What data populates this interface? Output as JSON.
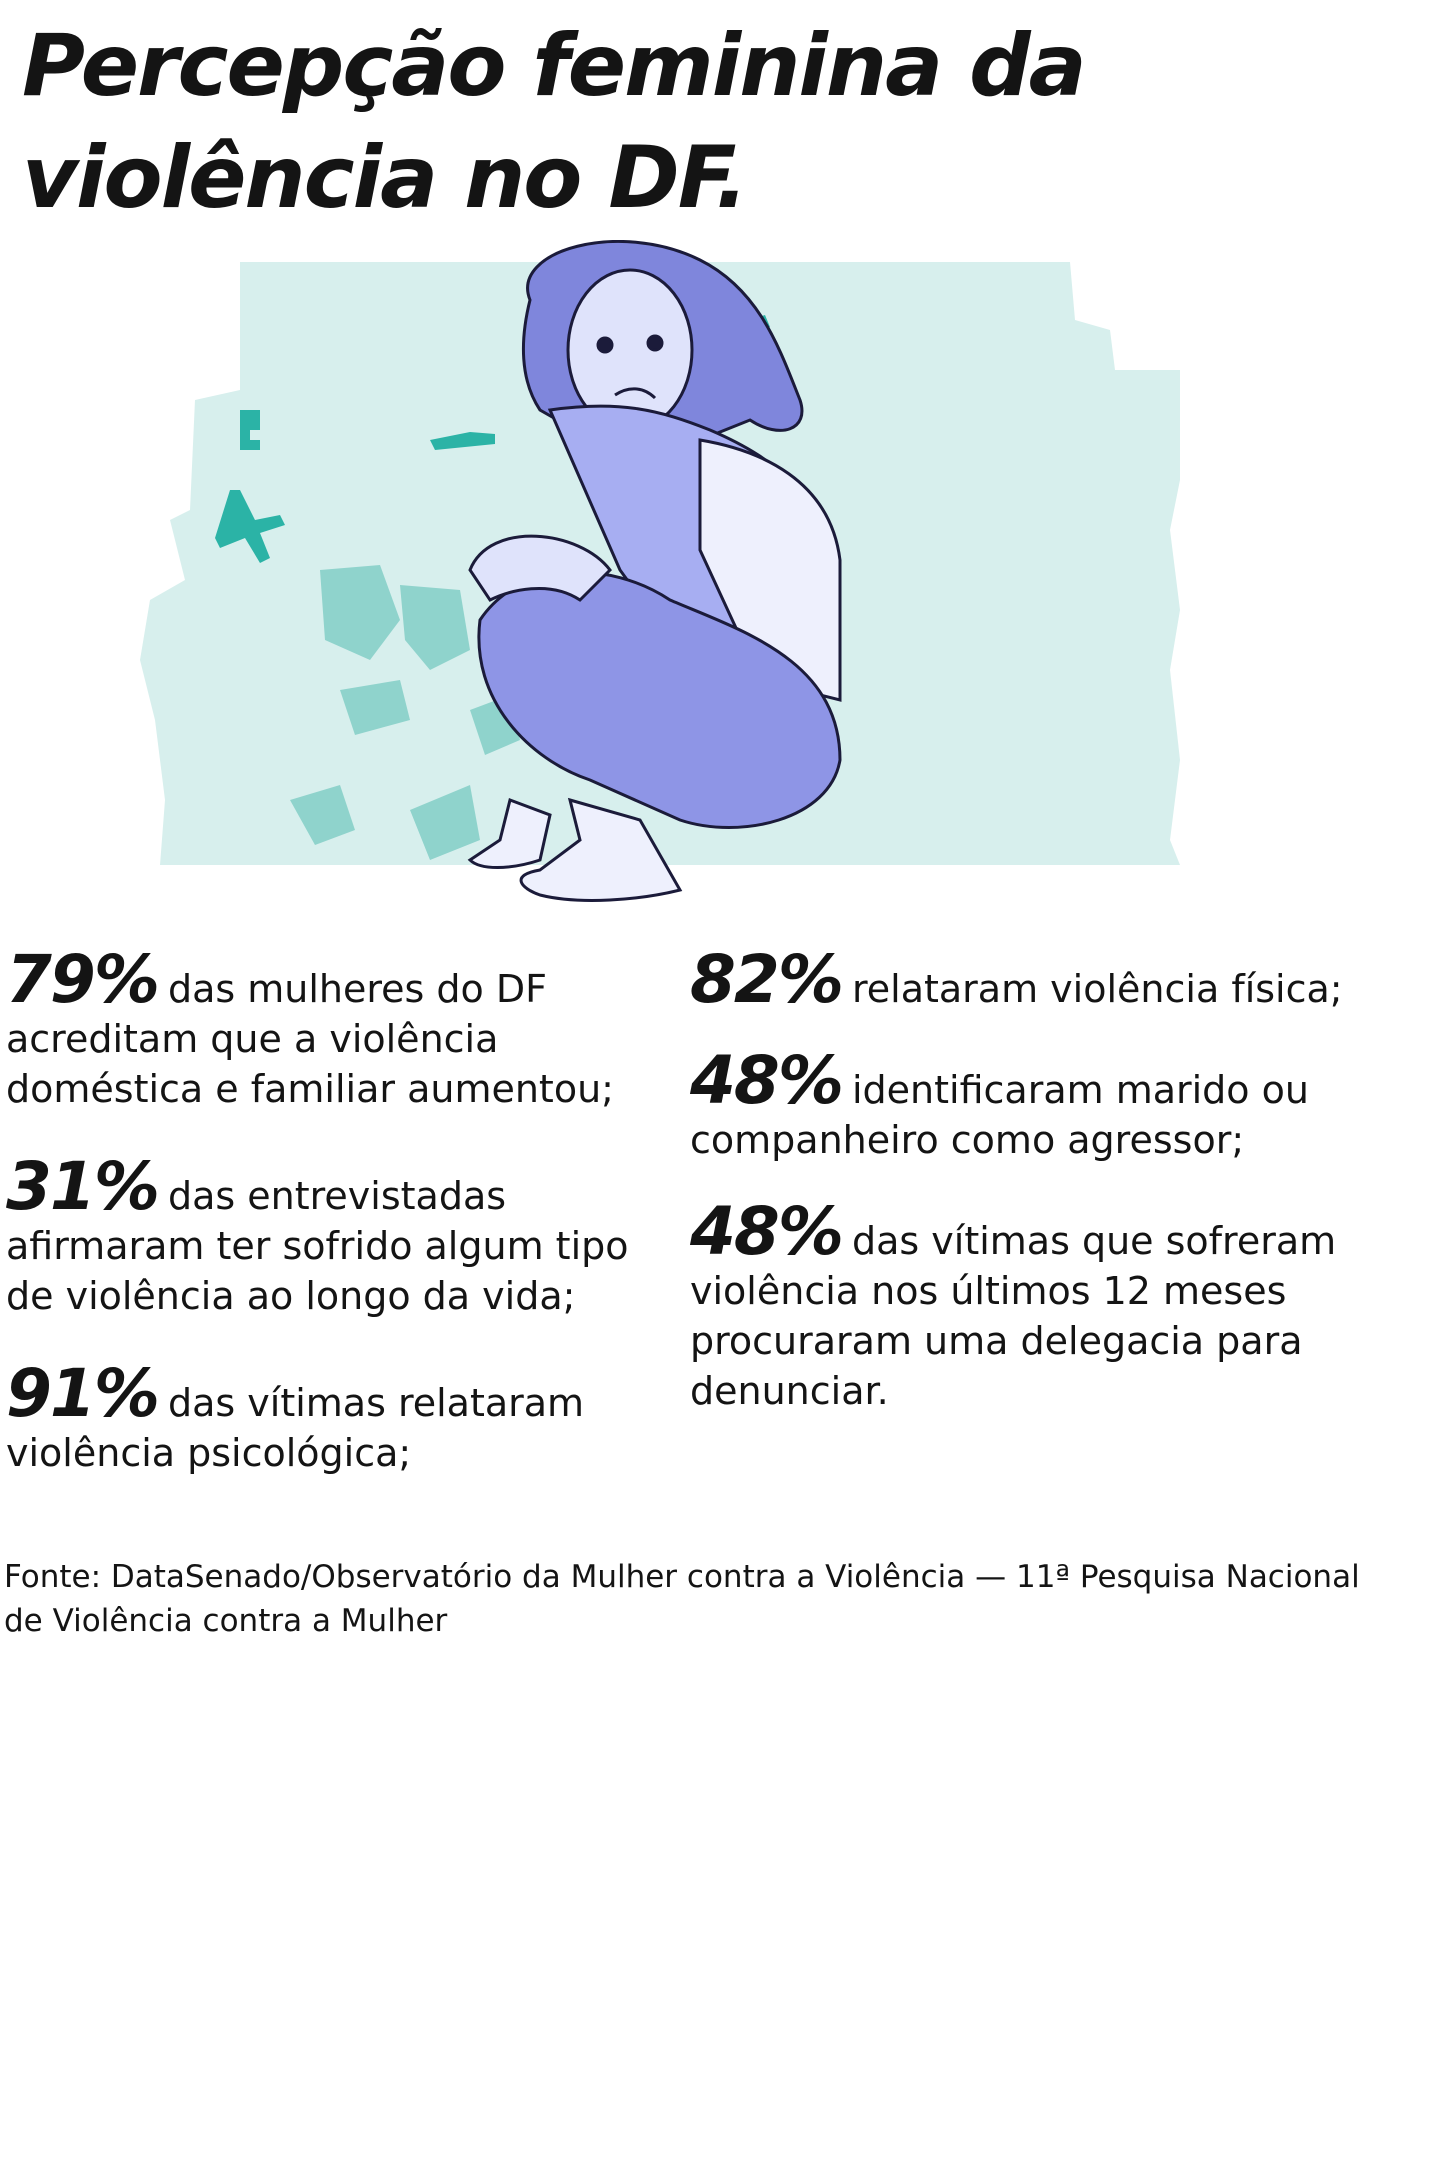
{
  "header": {
    "title": "Percepção feminina da violência no DF."
  },
  "stats": {
    "left": [
      {
        "value": "79%",
        "text": "das mulheres do DF acreditam que a violência doméstica e familiar aumentou;"
      },
      {
        "value": "31%",
        "text": "das entrevistadas afirmaram ter sofrido algum tipo de violência ao longo da vida;"
      },
      {
        "value": "91%",
        "text": "das vítimas relataram violência psicológica;"
      }
    ],
    "right": [
      {
        "value": "82%",
        "text": "relataram violência física;"
      },
      {
        "value": "48%",
        "text": "identificaram marido ou companheiro como agressor;"
      },
      {
        "value": "48%",
        "text": "das vítimas que sofreram violência nos últimos 12 meses procuraram uma delegacia para denunciar."
      }
    ]
  },
  "source": "Fonte: DataSenado/Observatório da Mulher contra a Violência — 11ª Pesquisa Nacional de Violência contra a Mulher"
}
